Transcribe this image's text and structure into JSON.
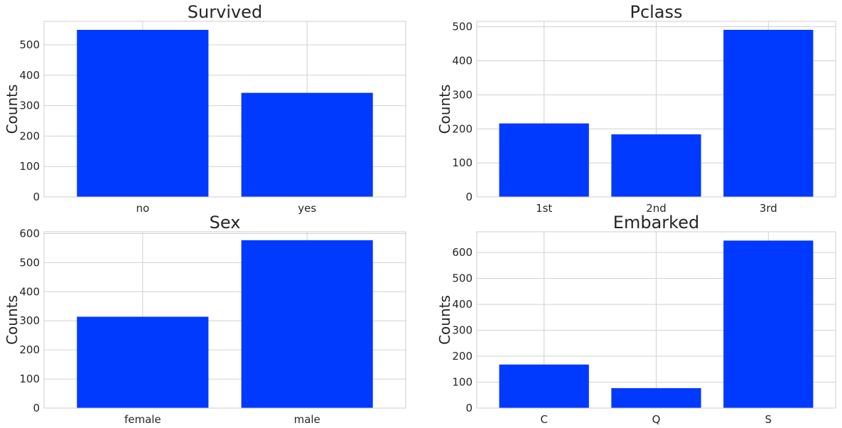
{
  "colors": {
    "bar": "#0039ff",
    "grid": "#d0d0d0",
    "frame": "#cccccc",
    "text": "#262626"
  },
  "chart_data": [
    {
      "type": "bar",
      "title": "Survived",
      "ylabel": "Counts",
      "xlabel": "",
      "categories": [
        "no",
        "yes"
      ],
      "values": [
        549,
        342
      ],
      "ylim": [
        0,
        577
      ],
      "yticks": [
        0,
        100,
        200,
        300,
        400,
        500
      ],
      "grid": true
    },
    {
      "type": "bar",
      "title": "Pclass",
      "ylabel": "Counts",
      "xlabel": "",
      "categories": [
        "1st",
        "2nd",
        "3rd"
      ],
      "values": [
        216,
        184,
        491
      ],
      "ylim": [
        0,
        516
      ],
      "yticks": [
        0,
        100,
        200,
        300,
        400,
        500
      ],
      "grid": true
    },
    {
      "type": "bar",
      "title": "Sex",
      "ylabel": "Counts",
      "xlabel": "",
      "categories": [
        "female",
        "male"
      ],
      "values": [
        314,
        577
      ],
      "ylim": [
        0,
        606
      ],
      "yticks": [
        0,
        100,
        200,
        300,
        400,
        500,
        600
      ],
      "grid": true
    },
    {
      "type": "bar",
      "title": "Embarked",
      "ylabel": "Counts",
      "xlabel": "",
      "categories": [
        "C",
        "Q",
        "S"
      ],
      "values": [
        168,
        77,
        646
      ],
      "ylim": [
        0,
        680
      ],
      "yticks": [
        0,
        100,
        200,
        300,
        400,
        500,
        600
      ],
      "grid": true
    }
  ]
}
